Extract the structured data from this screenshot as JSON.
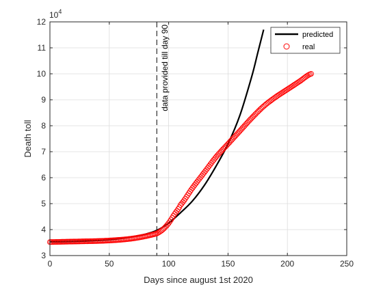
{
  "chart_data": {
    "type": "line",
    "xlabel": "Days since august 1st 2020",
    "ylabel": "Death toll",
    "y_exponent_label": "10",
    "y_exponent": "4",
    "xlim": [
      0,
      250
    ],
    "ylim": [
      3,
      12
    ],
    "y_scale_note": "y values in units of 10^4",
    "x_ticks": [
      "0",
      "50",
      "100",
      "150",
      "200",
      "250"
    ],
    "y_ticks": [
      "3",
      "4",
      "5",
      "6",
      "7",
      "8",
      "9",
      "10",
      "11",
      "12"
    ],
    "grid": true,
    "legend_position": "top-right",
    "annotation": {
      "text": "data provided till day 90",
      "x": 90
    },
    "series": [
      {
        "name": "predicted",
        "style": "line",
        "color": "#000000",
        "x": [
          0,
          10,
          20,
          30,
          40,
          50,
          60,
          70,
          80,
          90,
          100,
          110,
          120,
          130,
          140,
          150,
          160,
          170,
          175,
          180
        ],
        "y": [
          3.53,
          3.535,
          3.545,
          3.56,
          3.58,
          3.61,
          3.66,
          3.73,
          3.82,
          3.97,
          4.25,
          4.65,
          5.1,
          5.7,
          6.45,
          7.3,
          8.4,
          9.9,
          10.8,
          11.7
        ]
      },
      {
        "name": "real",
        "style": "markers",
        "marker": "circle-open",
        "color": "#ff0000",
        "x": [
          0,
          10,
          20,
          30,
          40,
          50,
          60,
          70,
          80,
          90,
          95,
          100,
          105,
          110,
          120,
          130,
          140,
          150,
          160,
          170,
          180,
          190,
          200,
          210,
          220
        ],
        "y": [
          3.52,
          3.53,
          3.54,
          3.55,
          3.56,
          3.58,
          3.61,
          3.66,
          3.74,
          3.85,
          4.0,
          4.25,
          4.6,
          4.95,
          5.6,
          6.2,
          6.8,
          7.3,
          7.8,
          8.3,
          8.75,
          9.1,
          9.4,
          9.7,
          10.0
        ]
      }
    ]
  }
}
